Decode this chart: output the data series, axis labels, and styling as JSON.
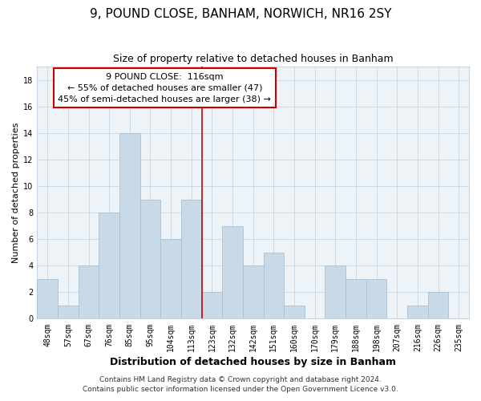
{
  "title": "9, POUND CLOSE, BANHAM, NORWICH, NR16 2SY",
  "subtitle": "Size of property relative to detached houses in Banham",
  "xlabel": "Distribution of detached houses by size in Banham",
  "ylabel": "Number of detached properties",
  "categories": [
    "48sqm",
    "57sqm",
    "67sqm",
    "76sqm",
    "85sqm",
    "95sqm",
    "104sqm",
    "113sqm",
    "123sqm",
    "132sqm",
    "142sqm",
    "151sqm",
    "160sqm",
    "170sqm",
    "179sqm",
    "188sqm",
    "198sqm",
    "207sqm",
    "216sqm",
    "226sqm",
    "235sqm"
  ],
  "values": [
    3,
    1,
    4,
    8,
    14,
    9,
    6,
    9,
    2,
    7,
    4,
    5,
    1,
    0,
    4,
    3,
    3,
    0,
    1,
    2,
    0
  ],
  "bar_color": "#c8d9e8",
  "bar_edgecolor": "#a8c0d4",
  "vline_color": "#cc0000",
  "vline_x": 7.5,
  "annotation_line1": "9 POUND CLOSE:  116sqm",
  "annotation_line2": "← 55% of detached houses are smaller (47)",
  "annotation_line3": "45% of semi-detached houses are larger (38) →",
  "annotation_box_edgecolor": "#cc0000",
  "annotation_box_facecolor": "#ffffff",
  "ylim": [
    0,
    19
  ],
  "yticks": [
    0,
    2,
    4,
    6,
    8,
    10,
    12,
    14,
    16,
    18
  ],
  "footnote1": "Contains HM Land Registry data © Crown copyright and database right 2024.",
  "footnote2": "Contains public sector information licensed under the Open Government Licence v3.0.",
  "title_fontsize": 11,
  "subtitle_fontsize": 9,
  "xlabel_fontsize": 9,
  "ylabel_fontsize": 8,
  "tick_fontsize": 7,
  "annotation_fontsize": 8,
  "footnote_fontsize": 6.5,
  "bg_color": "#eef3f8"
}
